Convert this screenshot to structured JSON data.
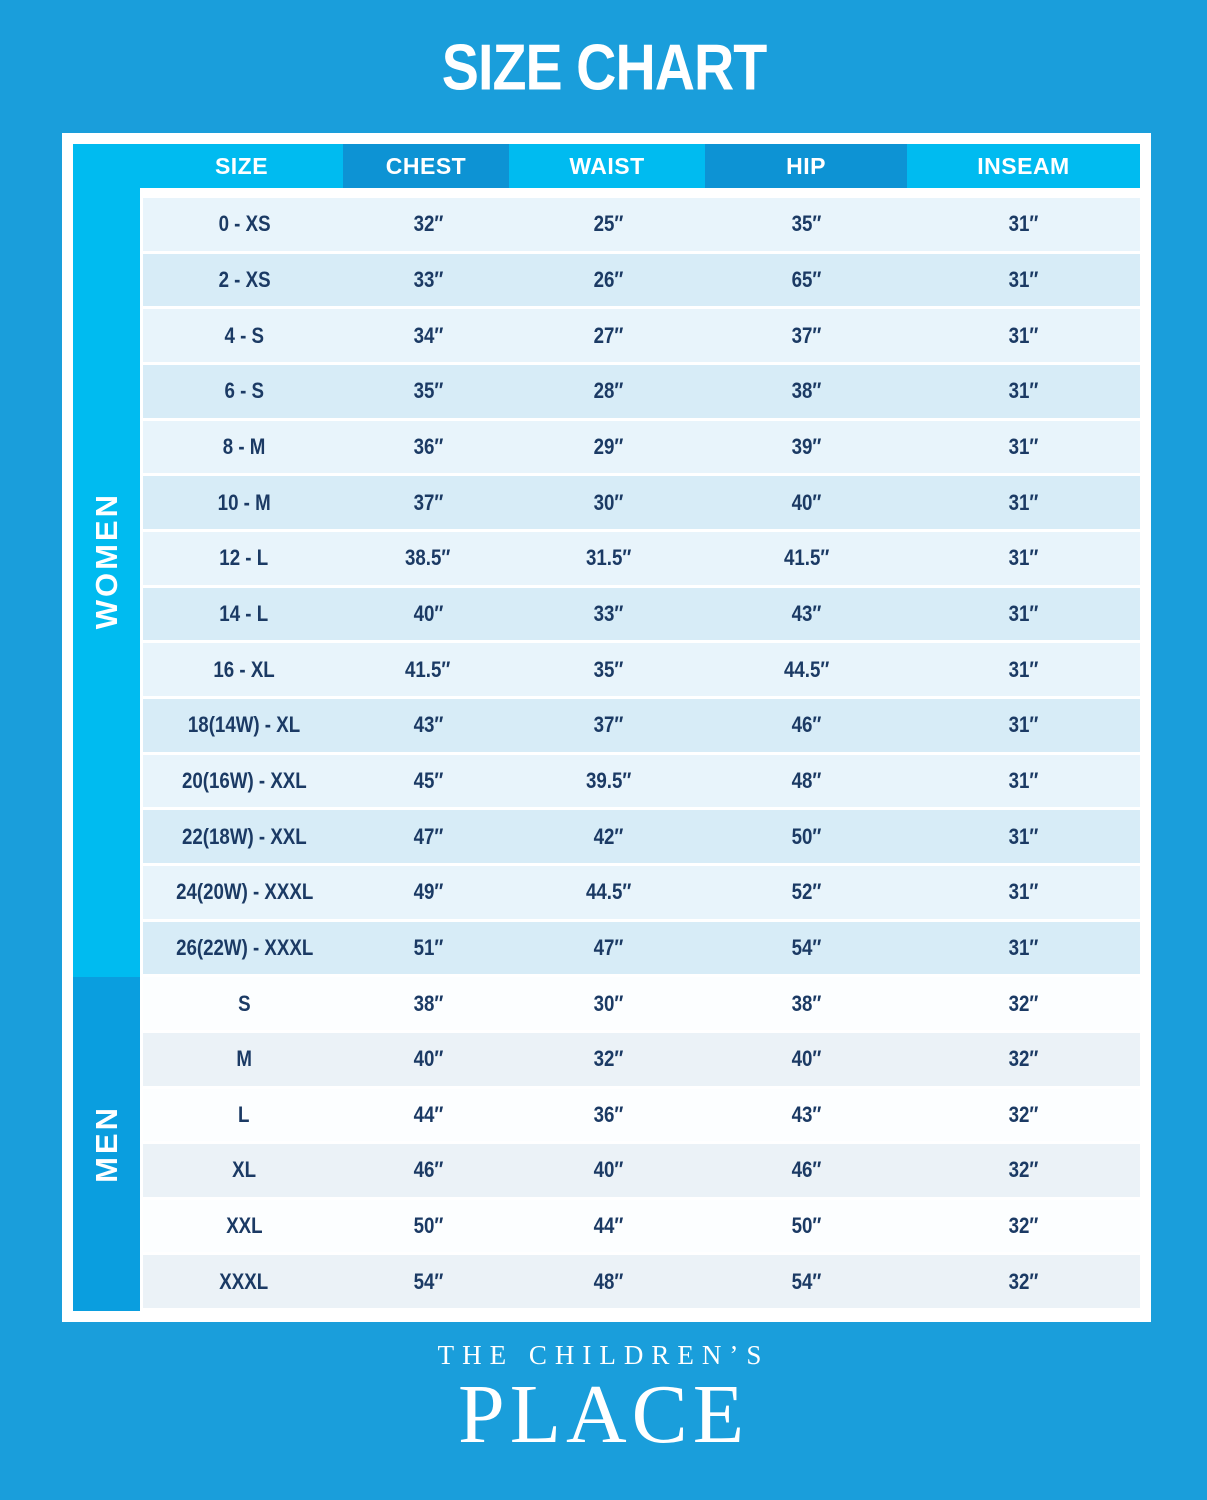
{
  "title": "SIZE CHART",
  "brand": {
    "line1": "THE CHILDREN’S",
    "line2": "PLACE"
  },
  "chart_data": {
    "type": "table",
    "title": "SIZE CHART",
    "columns": [
      "SIZE",
      "CHEST",
      "WAIST",
      "HIP",
      "INSEAM"
    ],
    "sections": [
      {
        "label": "WOMEN",
        "rows": [
          [
            "0 - XS",
            "32″",
            "25″",
            "35″",
            "31″"
          ],
          [
            "2 - XS",
            "33″",
            "26″",
            "65″",
            "31″"
          ],
          [
            "4 - S",
            "34″",
            "27″",
            "37″",
            "31″"
          ],
          [
            "6 - S",
            "35″",
            "28″",
            "38″",
            "31″"
          ],
          [
            "8 - M",
            "36″",
            "29″",
            "39″",
            "31″"
          ],
          [
            "10 - M",
            "37″",
            "30″",
            "40″",
            "31″"
          ],
          [
            "12 - L",
            "38.5″",
            "31.5″",
            "41.5″",
            "31″"
          ],
          [
            "14 - L",
            "40″",
            "33″",
            "43″",
            "31″"
          ],
          [
            "16 - XL",
            "41.5″",
            "35″",
            "44.5″",
            "31″"
          ],
          [
            "18(14W) - XL",
            "43″",
            "37″",
            "46″",
            "31″"
          ],
          [
            "20(16W) - XXL",
            "45″",
            "39.5″",
            "48″",
            "31″"
          ],
          [
            "22(18W) - XXL",
            "47″",
            "42″",
            "50″",
            "31″"
          ],
          [
            "24(20W) - XXXL",
            "49″",
            "44.5″",
            "52″",
            "31″"
          ],
          [
            "26(22W) - XXXL",
            "51″",
            "47″",
            "54″",
            "31″"
          ]
        ]
      },
      {
        "label": "MEN",
        "rows": [
          [
            "S",
            "38″",
            "30″",
            "38″",
            "32″"
          ],
          [
            "M",
            "40″",
            "32″",
            "40″",
            "32″"
          ],
          [
            "L",
            "44″",
            "36″",
            "43″",
            "32″"
          ],
          [
            "XL",
            "46″",
            "40″",
            "46″",
            "32″"
          ],
          [
            "XXL",
            "50″",
            "44″",
            "50″",
            "32″"
          ],
          [
            "XXXL",
            "54″",
            "48″",
            "54″",
            "32″"
          ]
        ]
      }
    ]
  },
  "colors": {
    "bg": "#1a9edb",
    "women": "#00bbf0",
    "men": "#0a9edf",
    "header-dark": "#0d93d4",
    "wrow1": "#e8f4fb",
    "wrow2": "#d7ecf7",
    "mrow1": "#fcfeff",
    "mrow2": "#ebf2f7",
    "navy": "#1b3a64"
  }
}
